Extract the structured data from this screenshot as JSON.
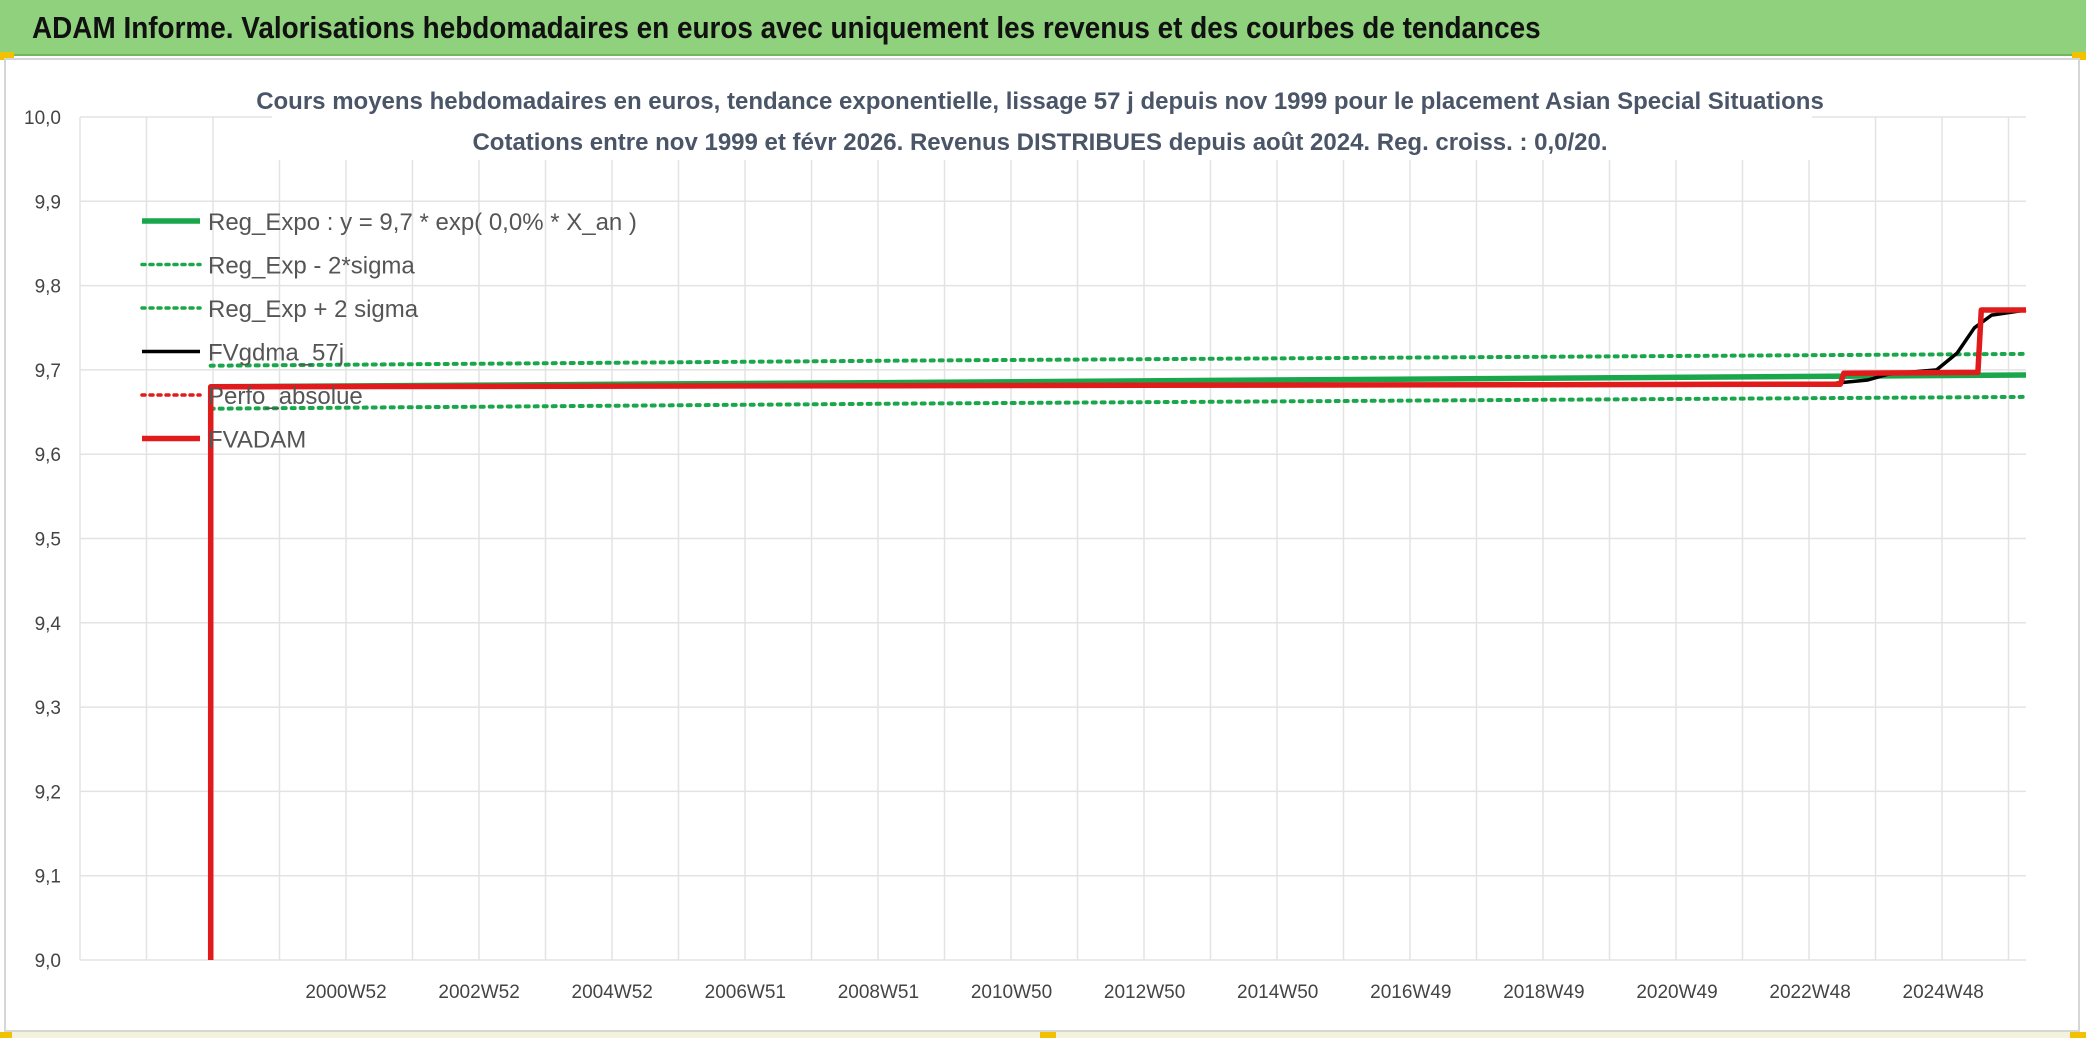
{
  "header": {
    "title": "ADAM Informe. Valorisations hebdomadaires en euros avec uniquement les revenus et des courbes de tendances"
  },
  "colors": {
    "header_bg": "#8fd17c",
    "green": "#1aa64a",
    "black": "#000000",
    "red": "#e11b1b",
    "grid": "#e3e3e3"
  },
  "chart_data": {
    "type": "line",
    "title": [
      "Cours moyens hebdomadaires en euros, tendance exponentielle, lissage 57 j depuis nov 1999 pour le placement Asian Special Situations",
      "Cotations entre nov 1999 et févr 2026. Revenus DISTRIBUES depuis août 2024. Reg. croiss. : 0,0/20."
    ],
    "y_ticks": [
      "9,0",
      "9,1",
      "9,2",
      "9,3",
      "9,4",
      "9,5",
      "9,6",
      "9,7",
      "9,8",
      "9,9",
      "10,0"
    ],
    "ylim": [
      9.0,
      10.0
    ],
    "x_ticks": [
      "2000W52",
      "2002W52",
      "2004W52",
      "2006W51",
      "2008W51",
      "2010W50",
      "2012W50",
      "2014W50",
      "2016W49",
      "2018W49",
      "2020W49",
      "2022W48",
      "2024W48"
    ],
    "xlim": [
      1998.0,
      2026.3
    ],
    "grid": true,
    "legend_position": "top-left",
    "series": [
      {
        "name": "Reg_Expo : y = 9,7 * exp( 0,0% *  X_an )",
        "color": "#1aa64a",
        "style": "solid-thick",
        "points": [
          [
            1999.9,
            9.68
          ],
          [
            2010.0,
            9.685
          ],
          [
            2026.3,
            9.694
          ]
        ]
      },
      {
        "name": "Reg_Exp - 2*sigma",
        "color": "#1aa64a",
        "style": "dotted",
        "points": [
          [
            1999.9,
            9.654
          ],
          [
            2010.0,
            9.66
          ],
          [
            2026.3,
            9.668
          ]
        ]
      },
      {
        "name": "Reg_Exp + 2 sigma",
        "color": "#1aa64a",
        "style": "dotted",
        "points": [
          [
            1999.9,
            9.705
          ],
          [
            2010.0,
            9.711
          ],
          [
            2026.3,
            9.719
          ]
        ]
      },
      {
        "name": "FVgdma_57j",
        "color": "#000000",
        "style": "solid",
        "points": [
          [
            1999.9,
            9.68
          ],
          [
            2023.5,
            9.684
          ],
          [
            2024.0,
            9.688
          ],
          [
            2024.3,
            9.695
          ],
          [
            2025.0,
            9.7
          ],
          [
            2025.3,
            9.72
          ],
          [
            2025.55,
            9.75
          ],
          [
            2025.8,
            9.765
          ],
          [
            2026.3,
            9.771
          ]
        ]
      },
      {
        "name": "Perfo_absolue",
        "color": "#e11b1b",
        "style": "dotted",
        "points": []
      },
      {
        "name": "FVADAM",
        "color": "#e11b1b",
        "style": "solid-thick",
        "points": [
          [
            1999.9,
            9.0
          ],
          [
            1999.9,
            9.68
          ],
          [
            2023.5,
            9.683
          ],
          [
            2023.6,
            9.683
          ],
          [
            2023.65,
            9.696
          ],
          [
            2025.6,
            9.697
          ],
          [
            2025.65,
            9.771
          ],
          [
            2026.3,
            9.771
          ]
        ]
      }
    ]
  }
}
